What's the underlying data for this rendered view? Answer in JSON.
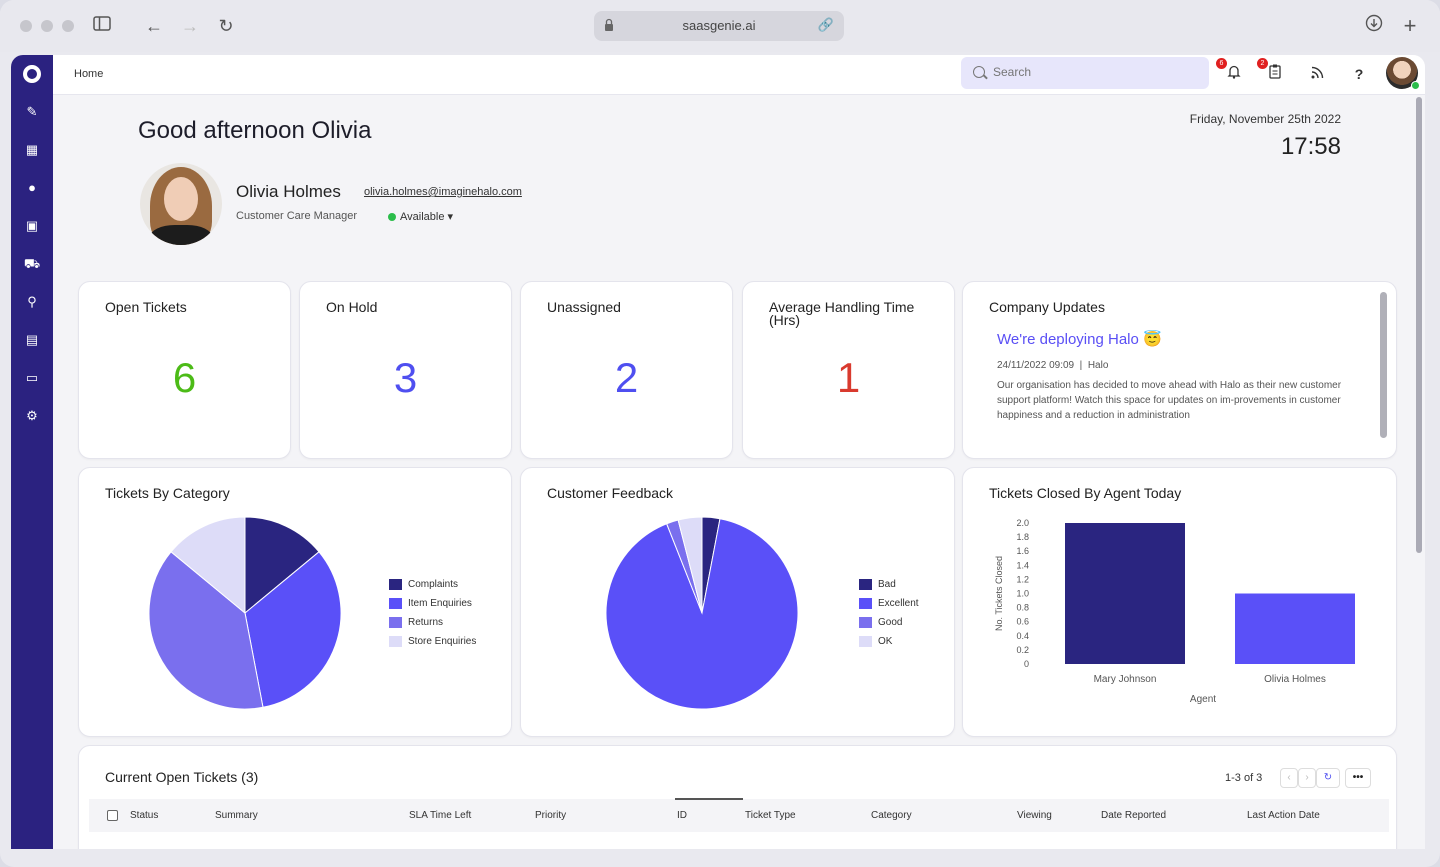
{
  "browser": {
    "url": "saasgenie.ai"
  },
  "topbar": {
    "breadcrumb": "Home",
    "search_placeholder": "Search",
    "notifications_count": "6",
    "tasks_count": "2"
  },
  "greeting": {
    "text": "Good afternoon Olivia",
    "date": "Friday, November 25th 2022",
    "time": "17:58"
  },
  "user": {
    "name": "Olivia Holmes",
    "email": "olivia.holmes@imaginehalo.com",
    "role": "Customer Care Manager",
    "status": "Available"
  },
  "stats": [
    {
      "title": "Open Tickets",
      "value": "6",
      "color": "#4cbb17"
    },
    {
      "title": "On Hold",
      "value": "3",
      "color": "#4f4ff0"
    },
    {
      "title": "Unassigned",
      "value": "2",
      "color": "#4f4ff0"
    },
    {
      "title": "Average Handling Time (Hrs)",
      "value": "1",
      "color": "#d93a2e"
    }
  ],
  "company_updates": {
    "title": "Company Updates",
    "headline": "We're deploying Halo 😇",
    "meta_date": "24/11/2022 09:09",
    "meta_author": "Halo",
    "body": "Our organisation has decided to move ahead with Halo as their new customer support platform! Watch this space for updates on im-provements in customer happiness and a reduction in administration"
  },
  "charts_titles": {
    "category": "Tickets By Category",
    "feedback": "Customer Feedback",
    "closed": "Tickets Closed By Agent Today"
  },
  "chart_data": [
    {
      "type": "pie",
      "title": "Tickets By Category",
      "categories": [
        "Complaints",
        "Item Enquiries",
        "Returns",
        "Store Enquiries"
      ],
      "values": [
        14,
        33,
        39,
        14
      ],
      "colors": [
        "#2a2580",
        "#5a50f8",
        "#7a6fee",
        "#dddcf8"
      ],
      "legend": "right"
    },
    {
      "type": "pie",
      "title": "Customer Feedback",
      "categories": [
        "Bad",
        "Excellent",
        "Good",
        "OK"
      ],
      "values": [
        3,
        91,
        2,
        4
      ],
      "colors": [
        "#2a2580",
        "#5a50f8",
        "#7a6fee",
        "#dddcf8"
      ],
      "legend": "right"
    },
    {
      "type": "bar",
      "title": "Tickets Closed By Agent Today",
      "categories": [
        "Mary Johnson",
        "Olivia Holmes"
      ],
      "values": [
        2,
        1
      ],
      "colors": [
        "#2a2580",
        "#5a50f8"
      ],
      "xlabel": "Agent",
      "ylabel": "No. Tickets Closed",
      "ylim": [
        0,
        2
      ],
      "yticks": [
        "2.0",
        "1.8",
        "1.6",
        "1.4",
        "1.2",
        "1.0",
        "0.8",
        "0.6",
        "0.4",
        "0.2",
        "0"
      ]
    }
  ],
  "tickets": {
    "title": "Current Open Tickets (3)",
    "pagination": "1-3 of 3",
    "columns": [
      "Status",
      "Summary",
      "SLA Time Left",
      "Priority",
      "ID",
      "Ticket Type",
      "Category",
      "Viewing",
      "Date Reported",
      "Last Action Date"
    ]
  }
}
